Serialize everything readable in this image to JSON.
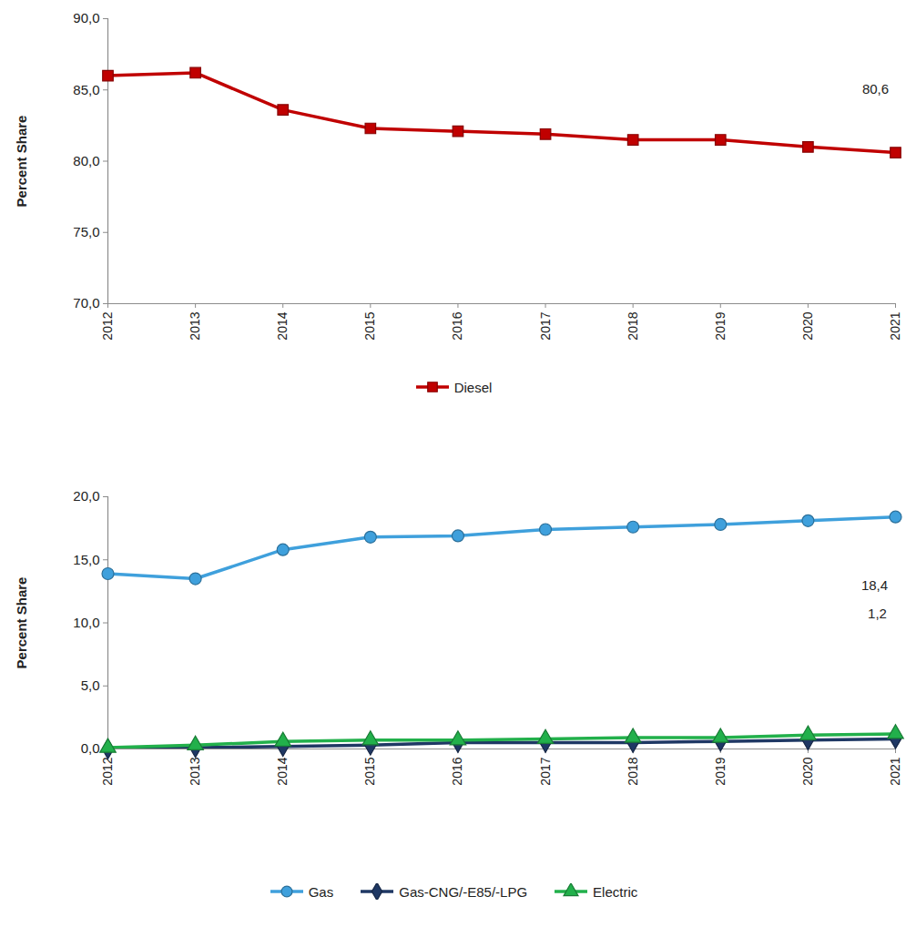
{
  "chart_data": [
    {
      "type": "line",
      "y_label": "Percent Share",
      "x": [
        2012,
        2013,
        2014,
        2015,
        2016,
        2017,
        2018,
        2019,
        2020,
        2021
      ],
      "xlim": [
        2012,
        2021
      ],
      "xticks": [
        2012,
        2013,
        2014,
        2015,
        2016,
        2017,
        2018,
        2019,
        2020,
        2021
      ],
      "ylim": [
        70,
        90
      ],
      "yticks": [
        {
          "value": 70,
          "label": "70,0"
        },
        {
          "value": 75,
          "label": "75,0"
        },
        {
          "value": 80,
          "label": "80,0"
        },
        {
          "value": 85,
          "label": "85,0"
        },
        {
          "value": 90,
          "label": "90,0"
        }
      ],
      "grid": false,
      "legend": "bottom",
      "series": [
        {
          "name": "Diesel",
          "color": "#c00000",
          "marker": "square",
          "values": [
            86.0,
            86.2,
            83.6,
            82.3,
            82.1,
            81.9,
            81.5,
            81.5,
            81.0,
            80.6
          ]
        }
      ],
      "annotations": [
        {
          "text": "80,6",
          "x": 2021,
          "y": 80.6,
          "color": "#c00000"
        }
      ]
    },
    {
      "type": "line",
      "y_label": "Percent Share",
      "x": [
        2012,
        2013,
        2014,
        2015,
        2016,
        2017,
        2018,
        2019,
        2020,
        2021
      ],
      "xlim": [
        2012,
        2021
      ],
      "xticks": [
        2012,
        2013,
        2014,
        2015,
        2016,
        2017,
        2018,
        2019,
        2020,
        2021
      ],
      "ylim": [
        0,
        20
      ],
      "yticks": [
        {
          "value": 0,
          "label": "0,0"
        },
        {
          "value": 5,
          "label": "5,0"
        },
        {
          "value": 10,
          "label": "10,0"
        },
        {
          "value": 15,
          "label": "15,0"
        },
        {
          "value": 20,
          "label": "20,0"
        }
      ],
      "grid": false,
      "legend": "bottom",
      "series": [
        {
          "name": "Gas",
          "color": "#3fa0dc",
          "marker": "circle",
          "values": [
            13.9,
            13.5,
            15.8,
            16.8,
            16.9,
            17.4,
            17.6,
            17.8,
            18.1,
            18.4
          ]
        },
        {
          "name": "Gas-CNG/-E85/-LPG",
          "color": "#1f3864",
          "marker": "diamond",
          "values": [
            0.0,
            0.1,
            0.2,
            0.3,
            0.5,
            0.5,
            0.5,
            0.6,
            0.7,
            0.8
          ]
        },
        {
          "name": "Electric",
          "color": "#22b04b",
          "marker": "triangle",
          "values": [
            0.1,
            0.3,
            0.6,
            0.7,
            0.7,
            0.8,
            0.9,
            0.9,
            1.1,
            1.2
          ]
        }
      ],
      "annotations": [
        {
          "text": "18,4",
          "x": 2021,
          "y": 18.4,
          "color": "#3fa0dc"
        },
        {
          "text": "1,2",
          "x": 2021,
          "y": 1.2,
          "color": "#22b04b"
        }
      ]
    }
  ]
}
